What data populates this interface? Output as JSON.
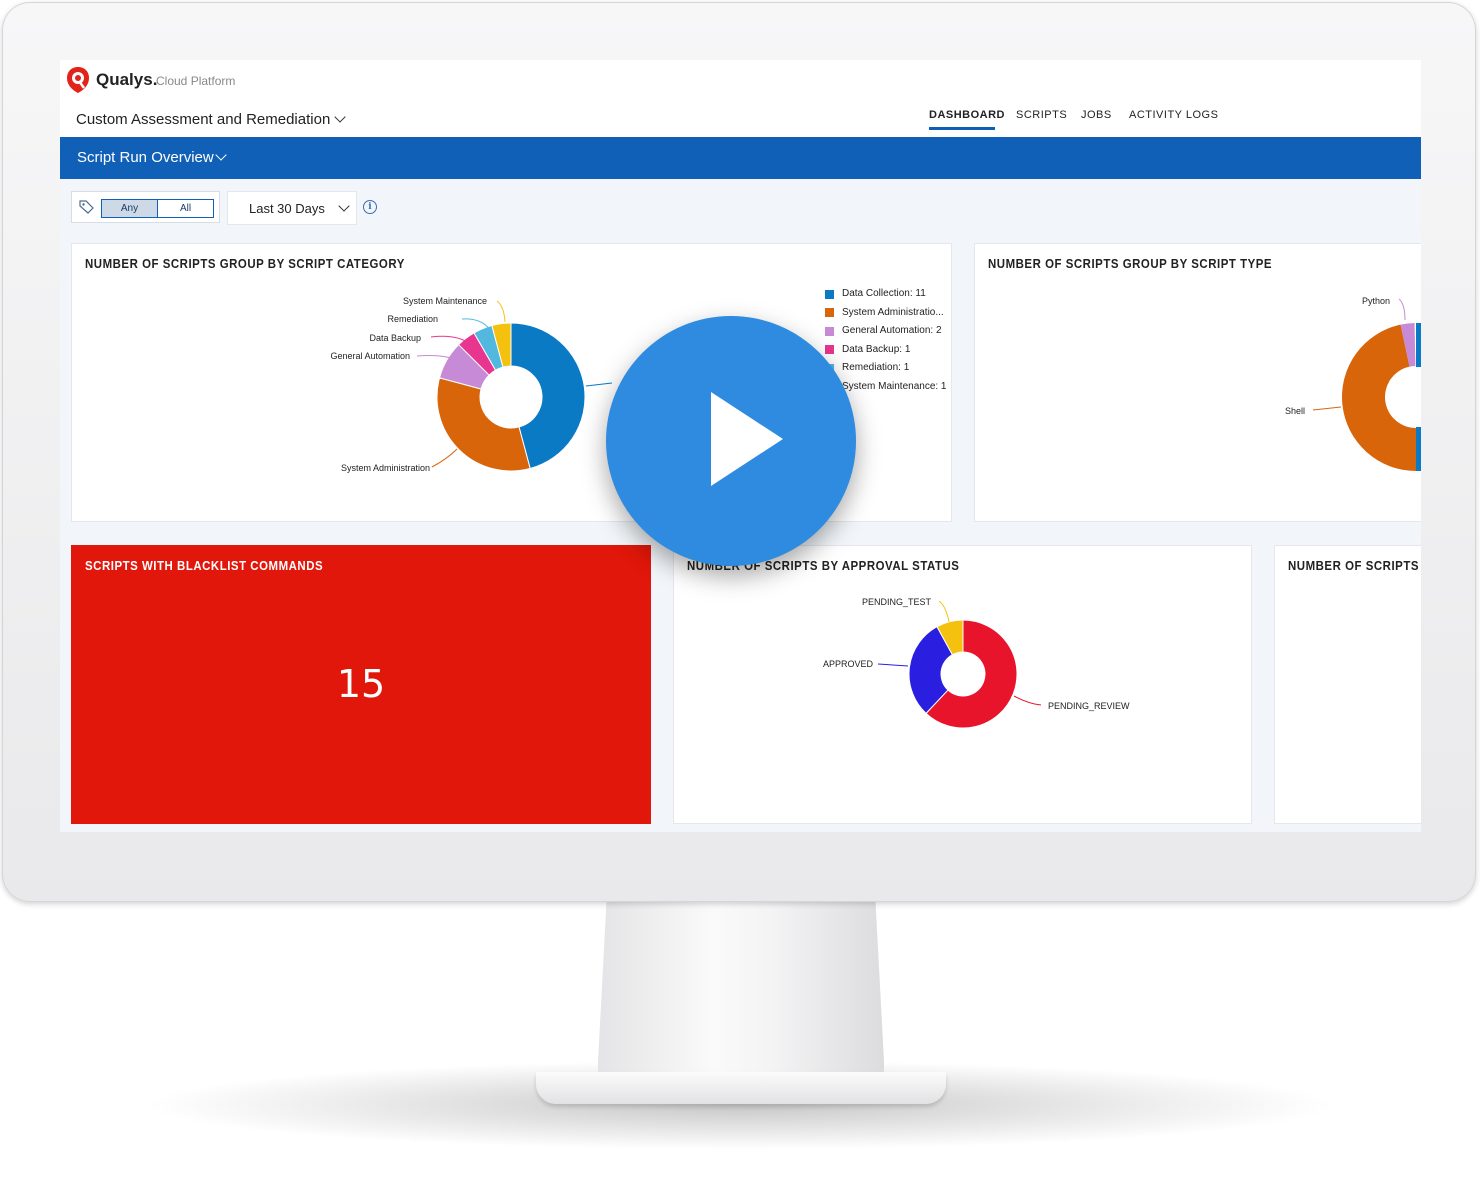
{
  "header": {
    "brand": "Qualys.",
    "brand_sub": "Cloud Platform",
    "app_title": "Custom Assessment and Remediation",
    "nav": [
      "DASHBOARD",
      "SCRIPTS",
      "JOBS",
      "ACTIVITY LOGS"
    ],
    "active_nav": "DASHBOARD"
  },
  "dashboard": {
    "title": "Script Run Overview"
  },
  "filters": {
    "tag_any": "Any",
    "tag_all": "All",
    "date_range": "Last 30 Days"
  },
  "colors": {
    "accent": "#1060b8",
    "blacklist_card": "#e0170a",
    "play_button": "#2e8be0"
  },
  "cards": {
    "category": {
      "title": "NUMBER OF SCRIPTS GROUP BY SCRIPT CATEGORY",
      "slice_labels": [
        "System Maintenance",
        "Remediation",
        "Data Backup",
        "General Automation",
        "System Administration"
      ],
      "legend": [
        "Data Collection: 11",
        "System Administratio...",
        "General Automation: 2",
        "Data Backup: 1",
        "Remediation: 1",
        "System Maintenance: 1"
      ]
    },
    "type": {
      "title": "NUMBER OF SCRIPTS GROUP BY SCRIPT TYPE",
      "slice_labels": [
        "Python",
        "Shell"
      ]
    },
    "blacklist": {
      "title": "SCRIPTS WITH BLACKLIST COMMANDS",
      "value": "15"
    },
    "approval": {
      "title": "NUMBER OF SCRIPTS BY APPROVAL STATUS",
      "slice_labels": [
        "PENDING_TEST",
        "APPROVED",
        "PENDING_REVIEW"
      ]
    },
    "partial": {
      "title": "NUMBER OF SCRIPTS GR"
    }
  },
  "chart_data": [
    {
      "type": "pie",
      "title": "NUMBER OF SCRIPTS GROUP BY SCRIPT CATEGORY",
      "categories": [
        "Data Collection",
        "System Administration",
        "General Automation",
        "Data Backup",
        "Remediation",
        "System Maintenance"
      ],
      "values": [
        11,
        8,
        2,
        1,
        1,
        1
      ],
      "colors": [
        "#0a7ac4",
        "#d9650b",
        "#c78ad6",
        "#e8358f",
        "#52b8e0",
        "#f4c10f"
      ],
      "legend": "right"
    },
    {
      "type": "pie",
      "title": "NUMBER OF SCRIPTS GROUP BY SCRIPT TYPE",
      "categories": [
        "Shell",
        "Python"
      ],
      "colors": [
        "#d9650b",
        "#c78ad6",
        "#0a7ac4"
      ]
    },
    {
      "type": "pie",
      "title": "NUMBER OF SCRIPTS BY APPROVAL STATUS",
      "categories": [
        "PENDING_REVIEW",
        "APPROVED",
        "PENDING_TEST"
      ],
      "values": [
        62,
        30,
        8
      ],
      "colors": [
        "#e8142b",
        "#2a1fe0",
        "#f4c10f"
      ]
    }
  ]
}
